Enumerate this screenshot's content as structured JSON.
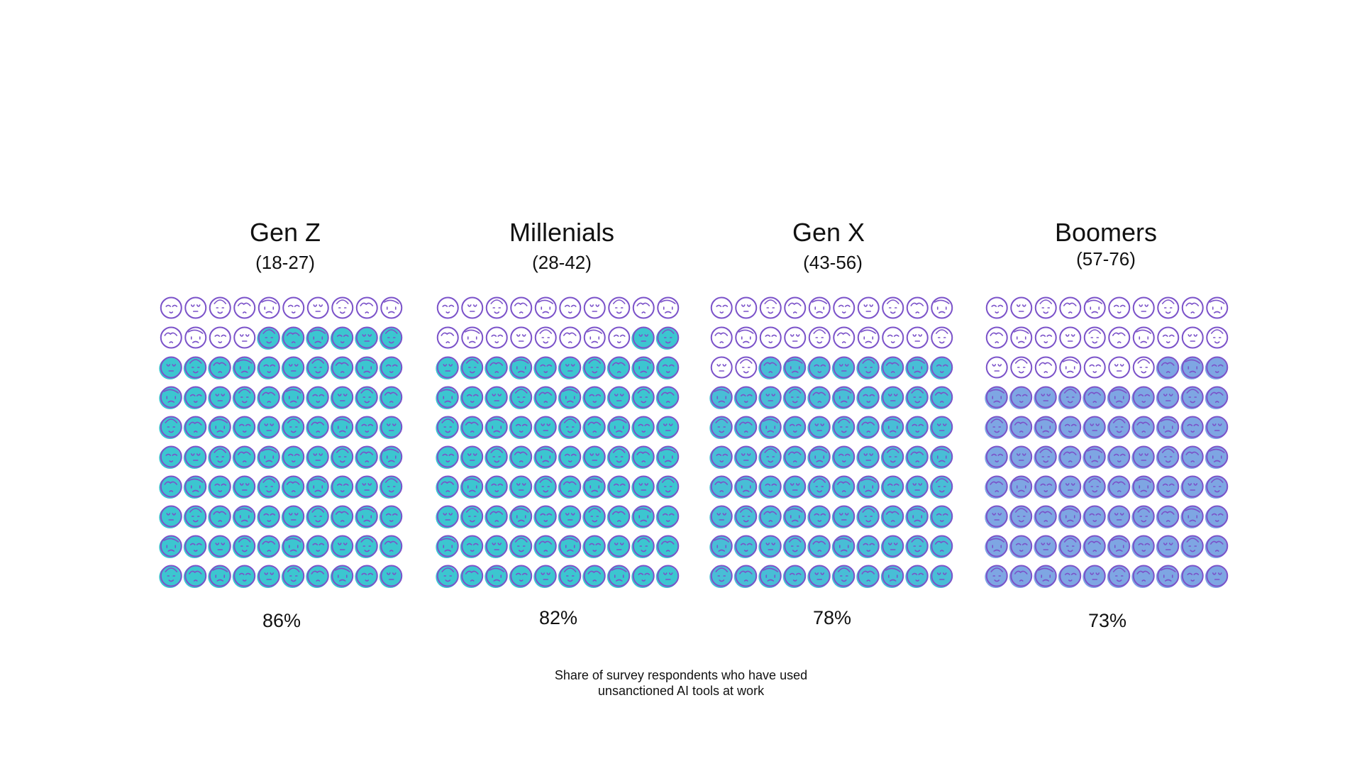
{
  "chart_data": {
    "type": "pictogram",
    "units_per_group": 100,
    "grid": {
      "rows": 10,
      "cols": 10
    },
    "groups": [
      {
        "name": "Gen Z",
        "range": "(18-27)",
        "value": 86,
        "value_label": "86%",
        "fill_color": "#3cc6d0"
      },
      {
        "name": "Millenials",
        "range": "(28-42)",
        "value": 82,
        "value_label": "82%",
        "fill_color": "#3cc6d0"
      },
      {
        "name": "Gen X",
        "range": "(43-56)",
        "value": 78,
        "value_label": "78%",
        "fill_color": "#48bed6"
      },
      {
        "name": "Boomers",
        "range": "(57-76)",
        "value": 73,
        "value_label": "73%",
        "fill_color": "#7ea6e3"
      }
    ],
    "caption_lines": [
      "Share of survey respondents who have used",
      "unsanctioned AI tools at work"
    ]
  },
  "colors": {
    "outline": "#7b52c9",
    "empty": "#ffffff",
    "text": "#111111"
  },
  "icons": {
    "unit": "face-outline-icon"
  }
}
